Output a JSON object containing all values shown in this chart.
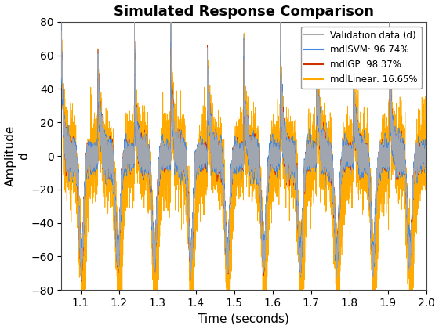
{
  "title": "Simulated Response Comparison",
  "xlabel": "Time (seconds)",
  "ylabel": "Amplitude\nd",
  "xlim": [
    1.05,
    2.0
  ],
  "ylim": [
    -80,
    80
  ],
  "xticks": [
    1.1,
    1.2,
    1.3,
    1.4,
    1.5,
    1.6,
    1.7,
    1.8,
    1.9,
    2.0
  ],
  "yticks": [
    -80,
    -60,
    -40,
    -20,
    0,
    20,
    40,
    60,
    80
  ],
  "legend": [
    {
      "label": "Validation data (d)",
      "color": "#aaaaaa"
    },
    {
      "label": "mdlSVM: 96.74%",
      "color": "#4488dd"
    },
    {
      "label": "mdlGP: 98.37%",
      "color": "#cc3300"
    },
    {
      "label": "mdlLinear: 16.65%",
      "color": "#ffaa00"
    }
  ],
  "t_start": 1.05,
  "t_end": 2.0,
  "n_points": 12000,
  "n_cycles": 10,
  "background_color": "#ffffff",
  "title_fontsize": 13,
  "label_fontsize": 11,
  "tick_fontsize": 10
}
